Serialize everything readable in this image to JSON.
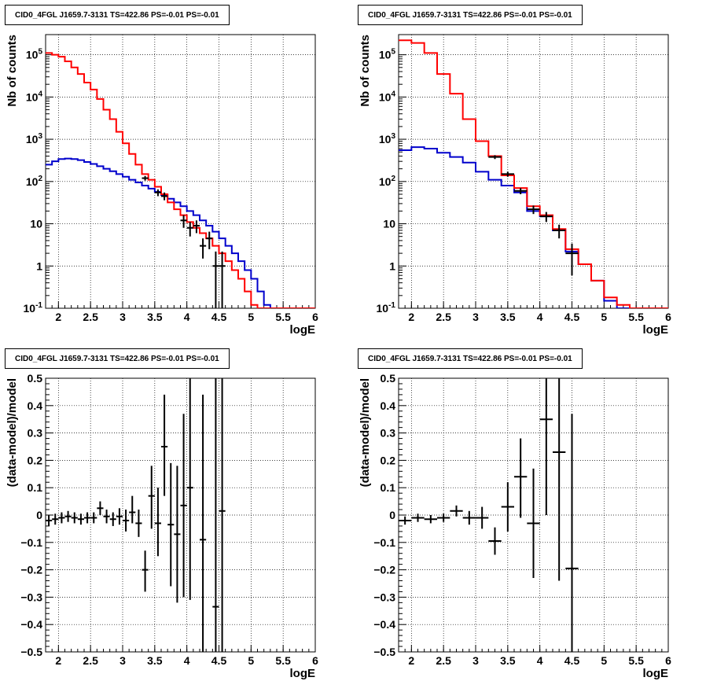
{
  "chart_data": [
    {
      "type": "step",
      "title": "CID0_4FGL J1659.7-3131 TS=422.86 PS=-0.01 PS=-0.01",
      "xlabel": "logE",
      "ylabel": "Nb of counts",
      "xlim": [
        1.8,
        6.0
      ],
      "ylim": [
        0.1,
        300000
      ],
      "yscale": "log",
      "grid": true,
      "x_ticks": [
        "2",
        "2.5",
        "3",
        "3.5",
        "4",
        "4.5",
        "5",
        "5.5",
        "6"
      ],
      "y_ticks": [
        "10^-1",
        "1",
        "10",
        "10^2",
        "10^3",
        "10^4",
        "10^5"
      ],
      "bin_edges": [
        1.8,
        1.9,
        2.0,
        2.1,
        2.2,
        2.3,
        2.4,
        2.5,
        2.6,
        2.7,
        2.8,
        2.9,
        3.0,
        3.1,
        3.2,
        3.3,
        3.4,
        3.5,
        3.6,
        3.7,
        3.8,
        3.9,
        4.0,
        4.1,
        4.2,
        4.3,
        4.4,
        4.5,
        4.6,
        4.7,
        4.8,
        4.9,
        5.0,
        5.1,
        5.2,
        5.3,
        5.4,
        5.5,
        5.6,
        5.7,
        5.8,
        5.9,
        6.0
      ],
      "series": [
        {
          "color": "#ff0000",
          "values": [
            110000,
            100000,
            90000,
            70000,
            50000,
            35000,
            22000,
            15000,
            9000,
            5000,
            3000,
            1500,
            800,
            450,
            250,
            150,
            110,
            75,
            50,
            32,
            22,
            16,
            11,
            8,
            6,
            4.5,
            3.0,
            2.0,
            1.3,
            0.8,
            0.5,
            0.25,
            0.12,
            0.1,
            0.1,
            0.1,
            0.1,
            0.1,
            0.1,
            0.1,
            0.1,
            0.1
          ]
        },
        {
          "color": "#0000cc",
          "values": [
            250,
            300,
            340,
            350,
            340,
            320,
            290,
            260,
            230,
            200,
            175,
            150,
            130,
            110,
            95,
            80,
            68,
            57,
            48,
            39,
            32,
            26,
            20,
            16,
            12,
            9,
            6.5,
            4.5,
            3,
            2,
            1.3,
            0.8,
            0.5,
            0.25,
            0.12,
            0.1,
            0.1,
            0.1,
            0.1,
            0.1,
            0.1,
            0.1
          ]
        }
      ],
      "points": [
        {
          "x": 3.35,
          "y": 120,
          "xerr": 0.05,
          "ylo": 105,
          "yhi": 135
        },
        {
          "x": 3.55,
          "y": 55,
          "xerr": 0.05,
          "ylo": 45,
          "yhi": 65
        },
        {
          "x": 3.65,
          "y": 45,
          "xerr": 0.05,
          "ylo": 36,
          "yhi": 55
        },
        {
          "x": 3.95,
          "y": 12,
          "xerr": 0.05,
          "ylo": 8,
          "yhi": 16
        },
        {
          "x": 4.05,
          "y": 8,
          "xerr": 0.05,
          "ylo": 5,
          "yhi": 11
        },
        {
          "x": 4.15,
          "y": 9,
          "xerr": 0.05,
          "ylo": 6,
          "yhi": 12
        },
        {
          "x": 4.25,
          "y": 3,
          "xerr": 0.05,
          "ylo": 1.5,
          "yhi": 4.5
        },
        {
          "x": 4.35,
          "y": 4.5,
          "xerr": 0.05,
          "ylo": 2.5,
          "yhi": 6.5
        },
        {
          "x": 4.45,
          "y": 1,
          "xerr": 0.05,
          "ylo": 0.1,
          "yhi": 2.2
        },
        {
          "x": 4.55,
          "y": 1,
          "xerr": 0.05,
          "ylo": 0.1,
          "yhi": 2.2
        }
      ]
    },
    {
      "type": "step",
      "title": "CID0_4FGL J1659.7-3131 TS=422.86 PS=-0.01 PS=-0.01",
      "xlabel": "logE",
      "ylabel": "Nb of counts",
      "xlim": [
        1.8,
        6.0
      ],
      "ylim": [
        0.1,
        300000
      ],
      "yscale": "log",
      "grid": true,
      "x_ticks": [
        "2",
        "2.5",
        "3",
        "3.5",
        "4",
        "4.5",
        "5",
        "5.5",
        "6"
      ],
      "y_ticks": [
        "10^-1",
        "1",
        "10",
        "10^2",
        "10^3",
        "10^4",
        "10^5"
      ],
      "bin_edges": [
        1.8,
        2.0,
        2.2,
        2.4,
        2.6,
        2.8,
        3.0,
        3.2,
        3.4,
        3.6,
        3.8,
        4.0,
        4.2,
        4.4,
        4.6,
        4.8,
        5.0,
        5.2,
        5.4,
        5.6,
        5.8,
        6.0
      ],
      "series": [
        {
          "color": "#ff0000",
          "values": [
            220000,
            190000,
            110000,
            35000,
            12000,
            3000,
            900,
            400,
            140,
            70,
            26,
            16,
            7.5,
            2.5,
            1.1,
            0.45,
            0.18,
            0.12,
            0.1,
            0.1,
            0.1
          ]
        },
        {
          "color": "#0000cc",
          "values": [
            550,
            650,
            600,
            480,
            380,
            280,
            170,
            110,
            80,
            55,
            20,
            15,
            7,
            2.2,
            1.1,
            0.45,
            0.15,
            0.1,
            0.1,
            0.1,
            0.1
          ]
        }
      ],
      "points": [
        {
          "x": 3.3,
          "y": 380,
          "xerr": 0.1,
          "ylo": 340,
          "yhi": 420
        },
        {
          "x": 3.5,
          "y": 150,
          "xerr": 0.1,
          "ylo": 130,
          "yhi": 170
        },
        {
          "x": 3.7,
          "y": 60,
          "xerr": 0.1,
          "ylo": 50,
          "yhi": 70
        },
        {
          "x": 3.9,
          "y": 22,
          "xerr": 0.1,
          "ylo": 17,
          "yhi": 27
        },
        {
          "x": 4.1,
          "y": 15,
          "xerr": 0.1,
          "ylo": 11,
          "yhi": 19
        },
        {
          "x": 4.3,
          "y": 7,
          "xerr": 0.1,
          "ylo": 4.5,
          "yhi": 9.5
        },
        {
          "x": 4.5,
          "y": 2,
          "xerr": 0.1,
          "ylo": 0.6,
          "yhi": 3.4
        }
      ]
    },
    {
      "type": "scatter",
      "title": "CID0_4FGL J1659.7-3131 TS=422.86 PS=-0.01 PS=-0.01",
      "xlabel": "logE",
      "ylabel": "(data-model)/model",
      "xlim": [
        1.8,
        6.0
      ],
      "ylim": [
        -0.5,
        0.5
      ],
      "grid": true,
      "x_ticks": [
        "2",
        "2.5",
        "3",
        "3.5",
        "4",
        "4.5",
        "5",
        "5.5",
        "6"
      ],
      "y_ticks": [
        "−0.5",
        "−0.4",
        "−0.3",
        "−0.2",
        "−0.1",
        "0",
        "0.1",
        "0.2",
        "0.3",
        "0.4",
        "0.5"
      ],
      "points": [
        {
          "x": 1.85,
          "y": -0.02,
          "xerr": 0.05,
          "ylo": -0.04,
          "yhi": 0.0
        },
        {
          "x": 1.95,
          "y": -0.015,
          "xerr": 0.05,
          "ylo": -0.035,
          "yhi": 0.005
        },
        {
          "x": 2.05,
          "y": -0.01,
          "xerr": 0.05,
          "ylo": -0.03,
          "yhi": 0.01
        },
        {
          "x": 2.15,
          "y": -0.005,
          "xerr": 0.05,
          "ylo": -0.025,
          "yhi": 0.015
        },
        {
          "x": 2.25,
          "y": -0.01,
          "xerr": 0.05,
          "ylo": -0.03,
          "yhi": 0.01
        },
        {
          "x": 2.35,
          "y": -0.015,
          "xerr": 0.05,
          "ylo": -0.035,
          "yhi": 0.005
        },
        {
          "x": 2.45,
          "y": -0.01,
          "xerr": 0.05,
          "ylo": -0.03,
          "yhi": 0.01
        },
        {
          "x": 2.55,
          "y": -0.01,
          "xerr": 0.05,
          "ylo": -0.03,
          "yhi": 0.01
        },
        {
          "x": 2.65,
          "y": 0.025,
          "xerr": 0.05,
          "ylo": 0.0,
          "yhi": 0.05
        },
        {
          "x": 2.75,
          "y": -0.005,
          "xerr": 0.05,
          "ylo": -0.03,
          "yhi": 0.02
        },
        {
          "x": 2.85,
          "y": -0.015,
          "xerr": 0.05,
          "ylo": -0.04,
          "yhi": 0.01
        },
        {
          "x": 2.95,
          "y": -0.005,
          "xerr": 0.05,
          "ylo": -0.035,
          "yhi": 0.025
        },
        {
          "x": 3.05,
          "y": -0.02,
          "xerr": 0.05,
          "ylo": -0.06,
          "yhi": 0.02
        },
        {
          "x": 3.15,
          "y": 0.01,
          "xerr": 0.05,
          "ylo": -0.03,
          "yhi": 0.07
        },
        {
          "x": 3.25,
          "y": -0.03,
          "xerr": 0.05,
          "ylo": -0.08,
          "yhi": 0.02
        },
        {
          "x": 3.35,
          "y": -0.2,
          "xerr": 0.05,
          "ylo": -0.28,
          "yhi": -0.13
        },
        {
          "x": 3.45,
          "y": 0.07,
          "xerr": 0.05,
          "ylo": -0.05,
          "yhi": 0.18
        },
        {
          "x": 3.55,
          "y": -0.03,
          "xerr": 0.05,
          "ylo": -0.15,
          "yhi": 0.1
        },
        {
          "x": 3.65,
          "y": 0.25,
          "xerr": 0.05,
          "ylo": 0.07,
          "yhi": 0.44
        },
        {
          "x": 3.75,
          "y": -0.035,
          "xerr": 0.05,
          "ylo": -0.26,
          "yhi": 0.19
        },
        {
          "x": 3.85,
          "y": -0.07,
          "xerr": 0.05,
          "ylo": -0.32,
          "yhi": 0.18
        },
        {
          "x": 3.95,
          "y": 0.035,
          "xerr": 0.05,
          "ylo": -0.3,
          "yhi": 0.37
        },
        {
          "x": 4.05,
          "y": 0.1,
          "xerr": 0.05,
          "ylo": -0.31,
          "yhi": 0.5
        },
        {
          "x": 4.25,
          "y": -0.09,
          "xerr": 0.05,
          "ylo": -0.5,
          "yhi": 0.44
        },
        {
          "x": 4.45,
          "y": -0.335,
          "xerr": 0.05,
          "ylo": -0.5,
          "yhi": 0.5
        },
        {
          "x": 4.55,
          "y": 0.015,
          "xerr": 0.05,
          "ylo": -0.5,
          "yhi": 0.5
        }
      ]
    },
    {
      "type": "scatter",
      "title": "CID0_4FGL J1659.7-3131 TS=422.86 PS=-0.01 PS=-0.01",
      "xlabel": "logE",
      "ylabel": "(data-model)/model",
      "xlim": [
        1.8,
        6.0
      ],
      "ylim": [
        -0.5,
        0.5
      ],
      "grid": true,
      "x_ticks": [
        "2",
        "2.5",
        "3",
        "3.5",
        "4",
        "4.5",
        "5",
        "5.5",
        "6"
      ],
      "y_ticks": [
        "−0.5",
        "−0.4",
        "−0.3",
        "−0.2",
        "−0.1",
        "0",
        "0.1",
        "0.2",
        "0.3",
        "0.4",
        "0.5"
      ],
      "points": [
        {
          "x": 1.9,
          "y": -0.02,
          "xerr": 0.1,
          "ylo": -0.035,
          "yhi": -0.005
        },
        {
          "x": 2.1,
          "y": -0.01,
          "xerr": 0.1,
          "ylo": -0.025,
          "yhi": 0.005
        },
        {
          "x": 2.3,
          "y": -0.015,
          "xerr": 0.1,
          "ylo": -0.03,
          "yhi": 0.0
        },
        {
          "x": 2.5,
          "y": -0.01,
          "xerr": 0.1,
          "ylo": -0.025,
          "yhi": 0.005
        },
        {
          "x": 2.7,
          "y": 0.015,
          "xerr": 0.1,
          "ylo": -0.005,
          "yhi": 0.035
        },
        {
          "x": 2.9,
          "y": -0.01,
          "xerr": 0.1,
          "ylo": -0.035,
          "yhi": 0.015
        },
        {
          "x": 3.1,
          "y": -0.01,
          "xerr": 0.1,
          "ylo": -0.05,
          "yhi": 0.03
        },
        {
          "x": 3.3,
          "y": -0.095,
          "xerr": 0.1,
          "ylo": -0.145,
          "yhi": -0.045
        },
        {
          "x": 3.5,
          "y": 0.03,
          "xerr": 0.1,
          "ylo": -0.06,
          "yhi": 0.12
        },
        {
          "x": 3.7,
          "y": 0.14,
          "xerr": 0.1,
          "ylo": -0.01,
          "yhi": 0.28
        },
        {
          "x": 3.9,
          "y": -0.03,
          "xerr": 0.1,
          "ylo": -0.23,
          "yhi": 0.17
        },
        {
          "x": 4.1,
          "y": 0.35,
          "xerr": 0.1,
          "ylo": 0.0,
          "yhi": 0.5
        },
        {
          "x": 4.3,
          "y": 0.23,
          "xerr": 0.1,
          "ylo": -0.24,
          "yhi": 0.5
        },
        {
          "x": 4.5,
          "y": -0.195,
          "xerr": 0.1,
          "ylo": -0.5,
          "yhi": 0.37
        }
      ]
    }
  ]
}
